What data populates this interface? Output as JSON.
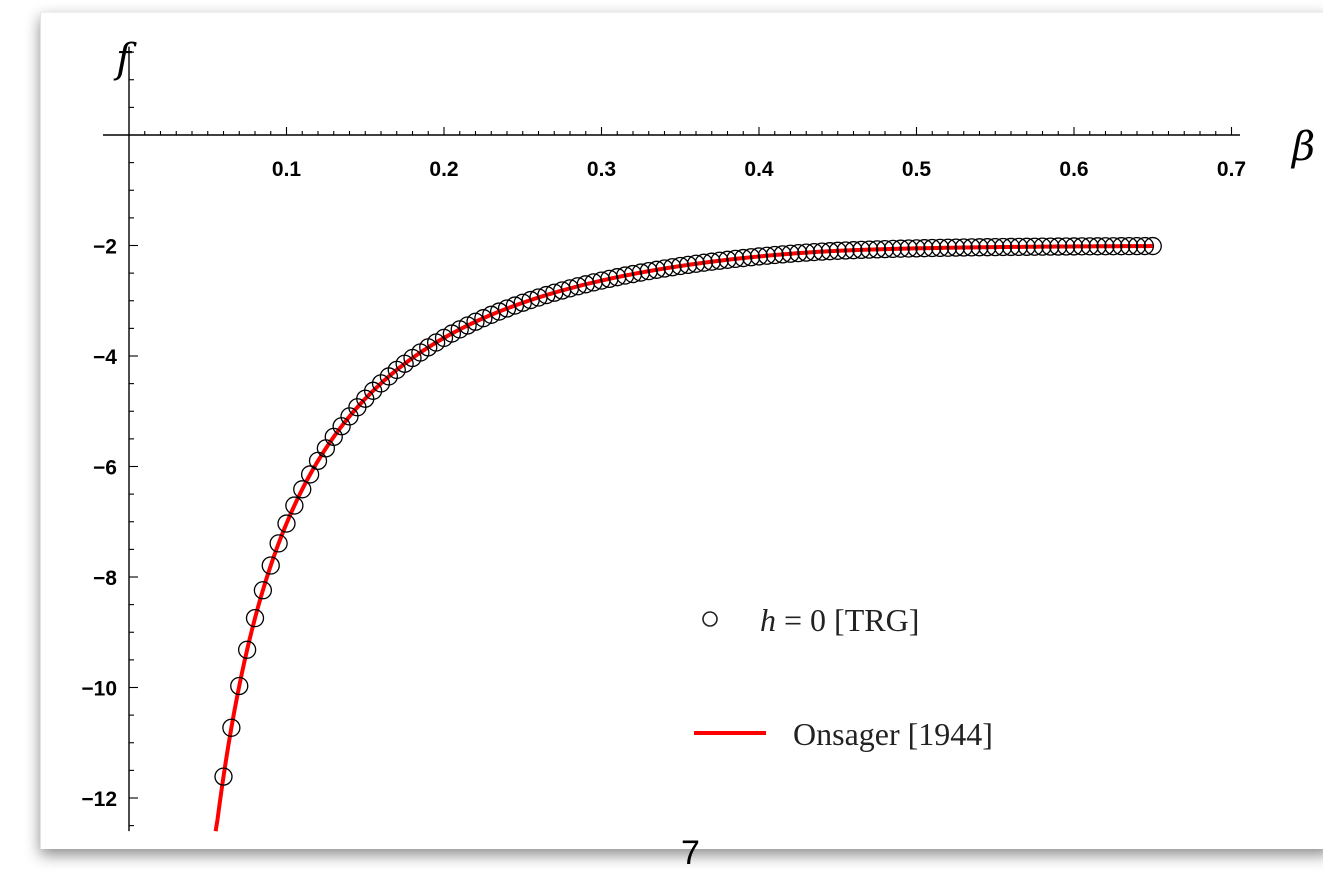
{
  "chart_data": {
    "type": "scatter",
    "xlabel": "β",
    "ylabel": "f",
    "xlim": [
      0,
      0.7
    ],
    "ylim": [
      -12.6,
      1.6
    ],
    "x_ticks": [
      "0.1",
      "0.2",
      "0.3",
      "0.4",
      "0.5",
      "0.6",
      "0.7"
    ],
    "y_ticks": [
      "−2",
      "−4",
      "−6",
      "−8",
      "−10",
      "−12"
    ],
    "x_tick_values": [
      0.1,
      0.2,
      0.3,
      0.4,
      0.5,
      0.6,
      0.7
    ],
    "y_tick_values": [
      -2,
      -4,
      -6,
      -8,
      -10,
      -12
    ],
    "grid": false,
    "legend_position": "bottom-right",
    "legend": {
      "trg_var": "h",
      "trg_rest": " = 0 [TRG]",
      "onsager": "Onsager [1944]"
    },
    "series": [
      {
        "name": "h = 0 [TRG]",
        "marker": "open-circle",
        "color": "#000000",
        "x_start": 0.06,
        "x_end": 0.65,
        "x_step": 0.005
      },
      {
        "name": "Onsager [1944]",
        "style": "line",
        "color": "#ff0000",
        "x_start": 0.055,
        "x_end": 0.65
      }
    ]
  },
  "page_number": "7"
}
